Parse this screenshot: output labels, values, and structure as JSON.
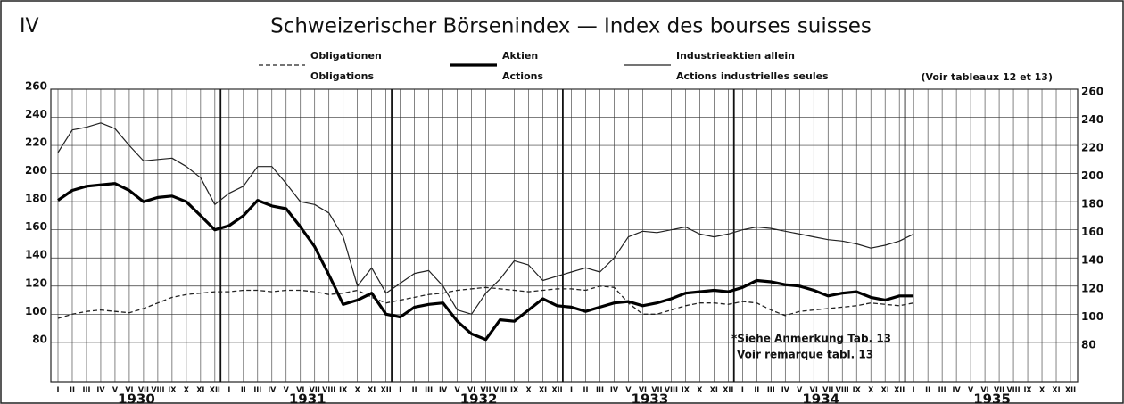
{
  "chart_data": {
    "type": "line",
    "panel": "IV",
    "title": "Schweizerischer Börsenindex — Index des bourses suisses",
    "note": "(Voir tableaux 12 et 13)",
    "annotation": [
      "*Siehe Anmerkung Tab. 13",
      "Voir remarque tabl. 13"
    ],
    "categories": [
      "I",
      "II",
      "III",
      "IV",
      "V",
      "VI",
      "VII",
      "VIII",
      "IX",
      "X",
      "XI",
      "XII",
      "I",
      "II",
      "III",
      "IV",
      "V",
      "VI",
      "VII",
      "VIII",
      "IX",
      "X",
      "XI",
      "XII",
      "I",
      "II",
      "III",
      "IV",
      "V",
      "VI",
      "VII",
      "VIII",
      "IX",
      "X",
      "XI",
      "XII",
      "I",
      "II",
      "III",
      "IV",
      "V",
      "VI",
      "VII",
      "VIII",
      "IX",
      "X",
      "XI",
      "XII",
      "I",
      "II",
      "III",
      "IV",
      "V",
      "VI",
      "VII",
      "VIII",
      "IX",
      "X",
      "XI",
      "XII",
      "I",
      "II",
      "III",
      "IV",
      "V",
      "VI",
      "VII",
      "VIII",
      "IX",
      "X",
      "XI",
      "XII"
    ],
    "years": [
      "1930",
      "1931",
      "1932",
      "1933",
      "1934",
      "1935"
    ],
    "ylim": [
      52,
      260
    ],
    "yticks": [
      80,
      100,
      120,
      140,
      160,
      180,
      200,
      220,
      240,
      260
    ],
    "grid": true,
    "series": [
      {
        "name": "Obligationen",
        "name_fr": "Obligations",
        "color": "#222",
        "dash": true,
        "width": 1.3,
        "values": [
          97,
          100,
          102,
          103,
          102,
          101,
          104,
          108,
          112,
          114,
          115,
          116,
          116,
          117,
          117,
          116,
          117,
          117,
          116,
          114,
          115,
          117,
          112,
          108,
          110,
          112,
          114,
          115,
          117,
          118,
          119,
          118,
          117,
          116,
          117,
          118,
          118,
          117,
          120,
          119,
          108,
          100,
          100,
          103,
          106,
          108,
          108,
          107,
          109,
          108,
          103,
          99,
          102,
          103,
          104,
          105,
          106,
          108,
          107,
          106,
          108,
          null,
          null,
          null,
          null,
          null,
          null,
          null,
          null,
          null,
          null,
          null
        ]
      },
      {
        "name": "Aktien",
        "name_fr": "Actions",
        "color": "#000",
        "dash": false,
        "width": 3.2,
        "values": [
          181,
          188,
          191,
          192,
          193,
          188,
          180,
          183,
          184,
          180,
          170,
          160,
          163,
          170,
          181,
          177,
          175,
          162,
          148,
          128,
          107,
          110,
          115,
          100,
          98,
          105,
          107,
          108,
          95,
          86,
          82,
          96,
          95,
          103,
          111,
          106,
          105,
          102,
          105,
          108,
          109,
          106,
          108,
          111,
          115,
          116,
          117,
          116,
          119,
          124,
          123,
          121,
          120,
          117,
          113,
          115,
          116,
          112,
          110,
          113,
          113,
          null,
          null,
          null,
          null,
          null,
          null,
          null,
          null,
          null,
          null,
          null
        ]
      },
      {
        "name": "Industrieaktien allein",
        "name_fr": "Actions industrielles seules",
        "color": "#222",
        "dash": false,
        "width": 1.2,
        "values": [
          215,
          231,
          233,
          236,
          232,
          220,
          209,
          210,
          211,
          205,
          197,
          178,
          186,
          191,
          205,
          205,
          193,
          180,
          178,
          172,
          155,
          120,
          133,
          115,
          122,
          129,
          131,
          120,
          103,
          100,
          115,
          125,
          138,
          135,
          124,
          127,
          130,
          133,
          130,
          140,
          155,
          159,
          158,
          160,
          162,
          157,
          155,
          157,
          160,
          162,
          161,
          159,
          157,
          155,
          153,
          152,
          150,
          147,
          149,
          152,
          157,
          null,
          null,
          null,
          null,
          null,
          null,
          null,
          null,
          null,
          null,
          null
        ]
      }
    ]
  }
}
